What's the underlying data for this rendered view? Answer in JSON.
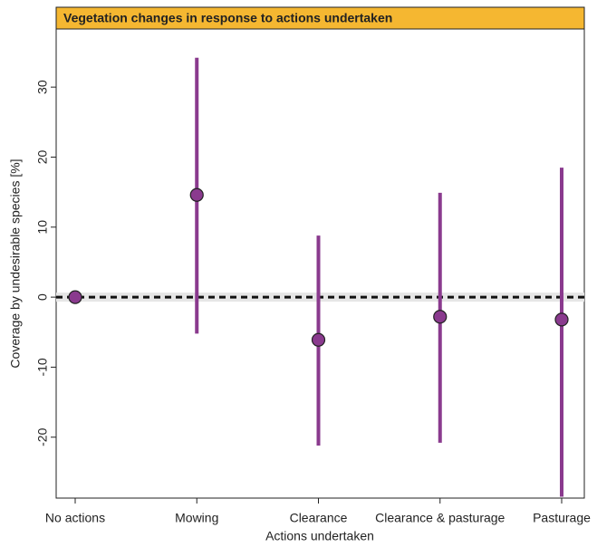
{
  "chart_data": {
    "type": "errorbar",
    "title": "Vegetation changes in response to actions undertaken",
    "x_label": "Actions undertaken",
    "y_label": "Coverage by undesirable species [%]",
    "categories": [
      "No actions",
      "Mowing",
      "Clearance",
      "Clearance & pasturage",
      "Pasturage"
    ],
    "values": [
      0,
      14.6,
      -6.1,
      -2.8,
      -3.2
    ],
    "lower": [
      0,
      -5.2,
      -21.2,
      -20.8,
      -28.5
    ],
    "upper": [
      0,
      34.2,
      8.8,
      14.9,
      18.5
    ],
    "color": "#8a3a8e",
    "reference_line": 0,
    "ylim": [
      -28.7,
      38.3
    ],
    "yticks": [
      -20,
      -10,
      0,
      10,
      20,
      30
    ]
  }
}
